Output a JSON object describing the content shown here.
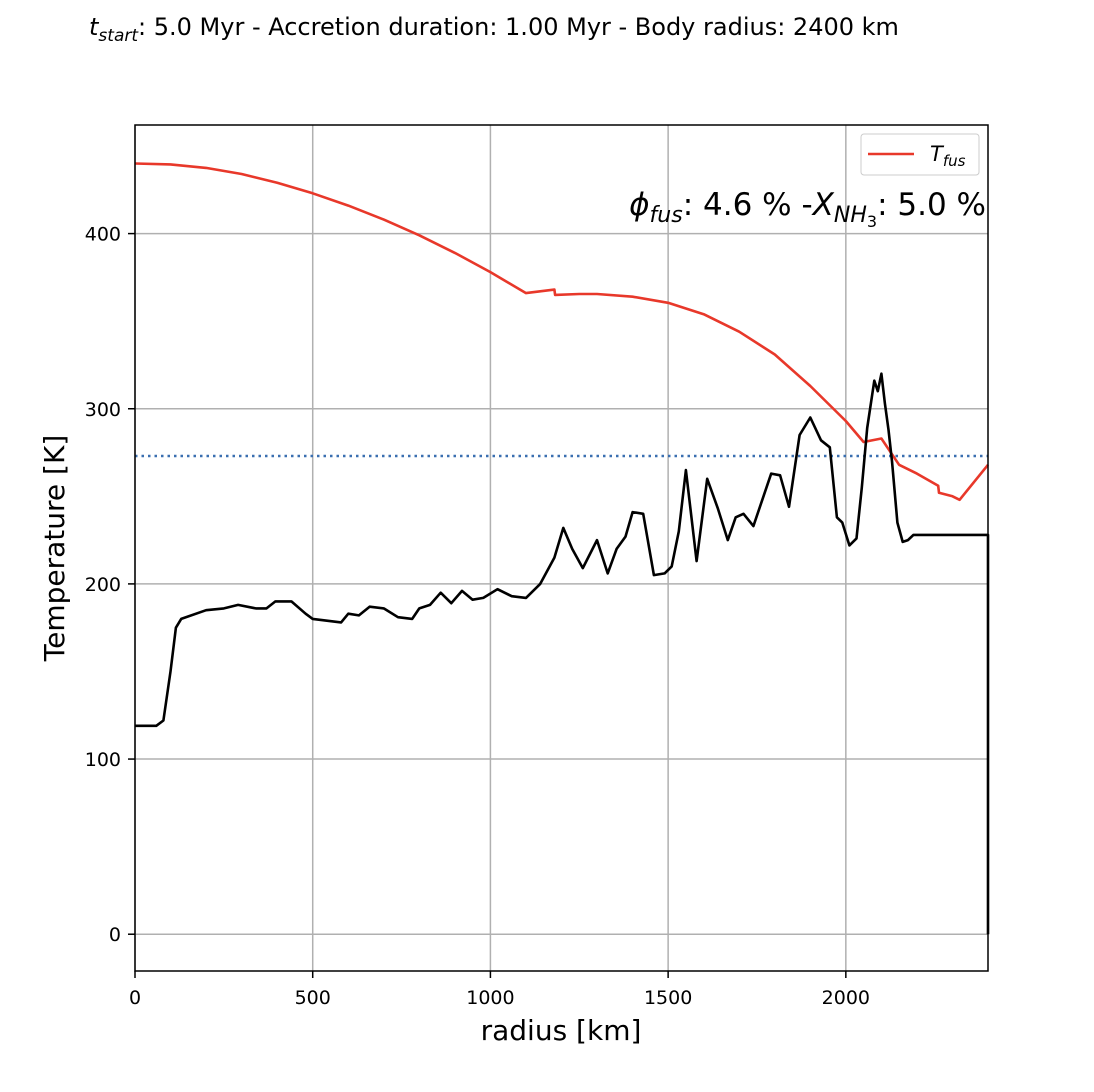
{
  "chart_data": {
    "type": "line",
    "title": {
      "t_symbol": "t",
      "t_subscript": "start",
      "rest": ":   5.0 Myr - Accretion duration:  1.00 Myr - Body radius:  2400 km"
    },
    "annotation": {
      "phi_symbol": "ϕ",
      "phi_subscript": "fus",
      "phi_value": ":  4.6 % -",
      "x_symbol": "X",
      "x_subscript": "NH",
      "x_subsubscript": "3",
      "x_value": ":  5.0 %"
    },
    "xlabel": "radius [km]",
    "ylabel": "Temperature [K]",
    "xlim": [
      0,
      2400
    ],
    "ylim": [
      -21,
      462
    ],
    "xticks": [
      0,
      500,
      1000,
      1500,
      2000
    ],
    "yticks": [
      0,
      100,
      200,
      300,
      400
    ],
    "grid": true,
    "legend": {
      "position": "top-right",
      "entries": [
        {
          "symbol": "T",
          "subscript": "fus",
          "color": "#e8382a"
        }
      ]
    },
    "reference_line": {
      "y": 273,
      "style": "dotted",
      "color": "#3a6fb0"
    },
    "series": [
      {
        "name": "T_fus",
        "color": "#e8382a",
        "x": [
          0,
          100,
          200,
          300,
          400,
          500,
          600,
          700,
          800,
          900,
          1000,
          1100,
          1180,
          1182,
          1250,
          1300,
          1400,
          1500,
          1600,
          1700,
          1800,
          1900,
          2000,
          2050,
          2100,
          2150,
          2200,
          2260,
          2262,
          2300,
          2320,
          2360,
          2400
        ],
        "y": [
          440,
          439.5,
          437.5,
          434,
          429,
          423,
          416,
          408,
          399,
          389,
          378,
          366,
          368,
          365,
          365.5,
          365.5,
          364,
          360.5,
          354,
          344,
          331,
          313,
          293,
          281,
          283,
          268,
          263,
          256,
          252,
          250,
          248,
          258,
          268
        ]
      },
      {
        "name": "T",
        "color": "#000000",
        "x": [
          0,
          60,
          80,
          100,
          115,
          130,
          200,
          250,
          290,
          340,
          370,
          395,
          440,
          480,
          500,
          540,
          580,
          600,
          630,
          660,
          700,
          740,
          780,
          800,
          830,
          860,
          890,
          920,
          950,
          980,
          1020,
          1060,
          1100,
          1140,
          1180,
          1205,
          1230,
          1260,
          1300,
          1330,
          1355,
          1380,
          1400,
          1430,
          1460,
          1490,
          1510,
          1530,
          1550,
          1580,
          1610,
          1640,
          1668,
          1690,
          1712,
          1740,
          1765,
          1790,
          1815,
          1840,
          1870,
          1900,
          1930,
          1955,
          1975,
          1990,
          2010,
          2030,
          2045,
          2060,
          2080,
          2090,
          2100,
          2110,
          2120,
          2130,
          2145,
          2160,
          2175,
          2190,
          2205,
          2220,
          2230,
          2240,
          2250,
          2260,
          2270,
          2280,
          2290,
          2300,
          2310,
          2350,
          2400,
          2400
        ],
        "y": [
          119,
          119,
          122,
          150,
          175,
          180,
          185,
          186,
          188,
          186,
          186,
          190,
          190,
          183,
          180,
          179,
          178,
          183,
          182,
          187,
          186,
          181,
          180,
          186,
          188,
          195,
          189,
          196,
          191,
          192,
          197,
          193,
          192,
          200,
          215,
          232,
          220,
          209,
          225,
          206,
          220,
          227,
          241,
          240,
          205,
          206,
          210,
          230,
          265,
          213,
          260,
          243,
          225,
          238,
          240,
          233,
          248,
          263,
          262,
          244,
          285,
          295,
          282,
          278,
          238,
          235,
          222,
          226,
          255,
          289,
          316,
          310,
          320,
          303,
          288,
          270,
          235,
          224,
          225,
          228,
          228,
          228,
          228,
          228,
          228,
          228,
          228,
          228,
          228,
          228,
          228,
          228,
          228,
          0
        ]
      }
    ]
  },
  "colors": {
    "grid": "#b0b0b0",
    "axis": "#000000",
    "fusion": "#e8382a",
    "temperature": "#000000",
    "reference": "#3a6fb0"
  }
}
